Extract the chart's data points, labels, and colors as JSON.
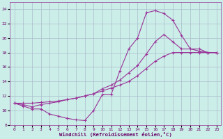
{
  "xlabel": "Windchill (Refroidissement éolien,°C)",
  "bg_color": "#cceee8",
  "grid_color": "#aabbcc",
  "line_color": "#993399",
  "xlim": [
    -0.5,
    23.5
  ],
  "ylim": [
    8,
    25
  ],
  "xticks": [
    0,
    1,
    2,
    3,
    4,
    5,
    6,
    7,
    8,
    9,
    10,
    11,
    12,
    13,
    14,
    15,
    16,
    17,
    18,
    19,
    20,
    21,
    22,
    23
  ],
  "yticks": [
    8,
    10,
    12,
    14,
    16,
    18,
    20,
    22,
    24
  ],
  "curve1_x": [
    0,
    1,
    2,
    3,
    4,
    5,
    6,
    7,
    8,
    9,
    10,
    11,
    12,
    13,
    14,
    15,
    16,
    17,
    18,
    19,
    20,
    21,
    22,
    23
  ],
  "curve1_y": [
    11.0,
    10.6,
    10.2,
    10.2,
    9.5,
    9.2,
    8.9,
    8.7,
    8.6,
    10.0,
    12.2,
    12.2,
    15.5,
    18.5,
    20.0,
    23.5,
    23.8,
    23.4,
    22.5,
    20.4,
    18.5,
    18.5,
    18.0,
    18.0
  ],
  "curve2_x": [
    0,
    1,
    2,
    3,
    4,
    5,
    6,
    7,
    8,
    9,
    10,
    11,
    12,
    13,
    14,
    15,
    16,
    17,
    18,
    19,
    20,
    21,
    22,
    23
  ],
  "curve2_y": [
    11.0,
    10.8,
    10.5,
    10.8,
    11.0,
    11.2,
    11.5,
    11.7,
    12.0,
    12.3,
    13.0,
    13.5,
    14.2,
    15.2,
    16.2,
    17.8,
    19.5,
    20.5,
    19.5,
    18.5,
    18.5,
    18.2,
    18.0,
    18.0
  ],
  "curve3_x": [
    0,
    1,
    2,
    3,
    4,
    5,
    6,
    7,
    8,
    9,
    10,
    11,
    12,
    13,
    14,
    15,
    16,
    17,
    18,
    19,
    20,
    21,
    22,
    23
  ],
  "curve3_y": [
    11.0,
    11.0,
    11.0,
    11.1,
    11.2,
    11.3,
    11.5,
    11.7,
    12.0,
    12.3,
    12.7,
    13.1,
    13.5,
    14.0,
    14.8,
    15.8,
    16.8,
    17.5,
    18.0,
    18.0,
    18.0,
    18.0,
    18.0,
    18.0
  ],
  "marker": "+",
  "marker_size": 3,
  "linewidth": 0.8
}
